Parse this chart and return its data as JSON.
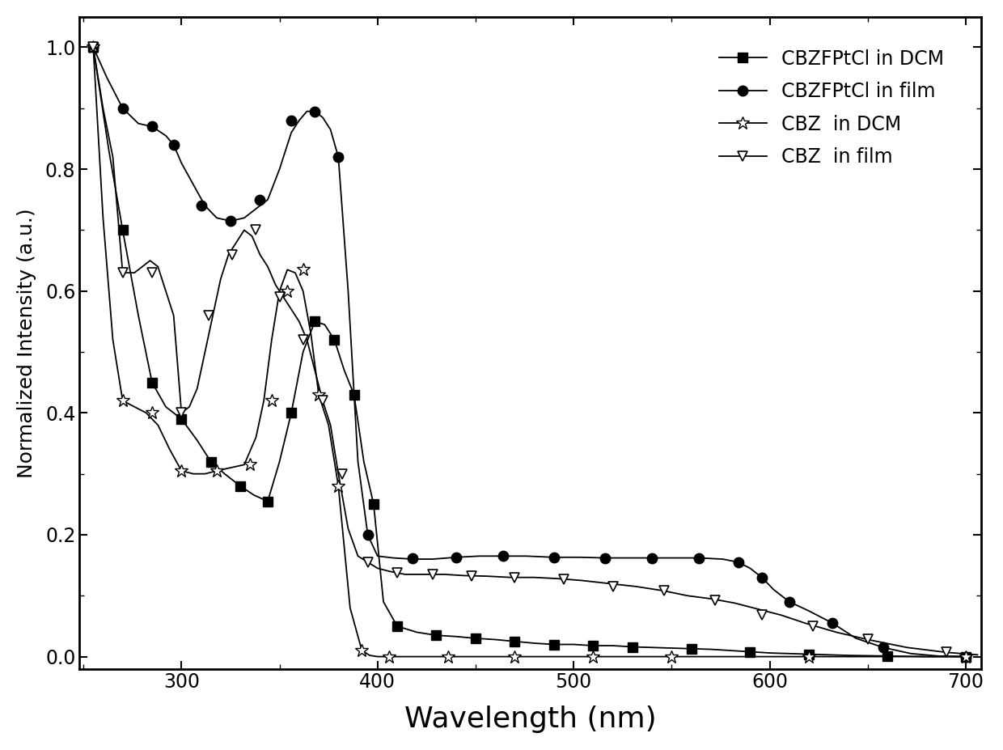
{
  "title": "",
  "xlabel": "Wavelength (nm)",
  "ylabel": "Normalized Intensity (a.u.)",
  "xlim": [
    248,
    708
  ],
  "ylim": [
    -0.02,
    1.05
  ],
  "xticks": [
    300,
    400,
    500,
    600,
    700
  ],
  "yticks": [
    0.0,
    0.2,
    0.4,
    0.6,
    0.8,
    1.0
  ],
  "series1_label": "CBZFPtCl in DCM",
  "series1_marker": "s",
  "series2_label": "CBZFPtCl in film",
  "series2_marker": "o",
  "series3_label": "CBZ  in DCM",
  "series3_marker": "*",
  "series4_label": "CBZ  in film",
  "series4_marker": "v",
  "series1_nodes_x": [
    255,
    263,
    270,
    278,
    285,
    292,
    300,
    308,
    315,
    322,
    330,
    337,
    344,
    350,
    356,
    362,
    368,
    373,
    378,
    383,
    388,
    393,
    398,
    403,
    410,
    420,
    430,
    440,
    450,
    460,
    470,
    480,
    490,
    500,
    510,
    520,
    530,
    540,
    550,
    560,
    570,
    580,
    590,
    600,
    620,
    640,
    660,
    680,
    700
  ],
  "series1_nodes_y": [
    1.0,
    0.83,
    0.7,
    0.56,
    0.45,
    0.41,
    0.39,
    0.355,
    0.32,
    0.3,
    0.28,
    0.265,
    0.255,
    0.32,
    0.4,
    0.5,
    0.55,
    0.545,
    0.52,
    0.47,
    0.43,
    0.32,
    0.25,
    0.09,
    0.05,
    0.04,
    0.035,
    0.033,
    0.03,
    0.028,
    0.025,
    0.022,
    0.02,
    0.02,
    0.018,
    0.018,
    0.016,
    0.015,
    0.014,
    0.013,
    0.012,
    0.01,
    0.008,
    0.006,
    0.004,
    0.002,
    0.001,
    0.0,
    0.0
  ],
  "series1_marker_x": [
    255,
    270,
    285,
    300,
    315,
    330,
    344,
    356,
    368,
    378,
    388,
    398,
    410,
    430,
    450,
    470,
    490,
    510,
    530,
    560,
    590,
    620,
    660,
    700
  ],
  "series1_marker_y": [
    1.0,
    0.7,
    0.45,
    0.39,
    0.32,
    0.28,
    0.255,
    0.4,
    0.55,
    0.52,
    0.43,
    0.25,
    0.05,
    0.035,
    0.03,
    0.025,
    0.02,
    0.018,
    0.015,
    0.013,
    0.008,
    0.004,
    0.001,
    0.0
  ],
  "series2_nodes_x": [
    255,
    262,
    270,
    278,
    285,
    292,
    296,
    300,
    306,
    312,
    318,
    325,
    332,
    338,
    344,
    350,
    356,
    360,
    364,
    368,
    372,
    376,
    380,
    385,
    390,
    395,
    400,
    408,
    418,
    428,
    440,
    452,
    464,
    476,
    490,
    504,
    516,
    528,
    540,
    552,
    564,
    576,
    584,
    590,
    596,
    602,
    610,
    620,
    632,
    644,
    658,
    672,
    686,
    700
  ],
  "series2_nodes_y": [
    1.0,
    0.95,
    0.9,
    0.875,
    0.87,
    0.855,
    0.84,
    0.81,
    0.775,
    0.74,
    0.72,
    0.715,
    0.72,
    0.735,
    0.75,
    0.8,
    0.86,
    0.88,
    0.895,
    0.895,
    0.885,
    0.865,
    0.82,
    0.6,
    0.32,
    0.2,
    0.165,
    0.162,
    0.16,
    0.16,
    0.163,
    0.165,
    0.165,
    0.165,
    0.163,
    0.163,
    0.162,
    0.162,
    0.162,
    0.162,
    0.162,
    0.16,
    0.155,
    0.145,
    0.13,
    0.11,
    0.09,
    0.075,
    0.055,
    0.03,
    0.015,
    0.005,
    0.001,
    0.0
  ],
  "series2_marker_x": [
    255,
    270,
    285,
    296,
    310,
    325,
    340,
    356,
    368,
    380,
    395,
    418,
    440,
    464,
    490,
    516,
    540,
    564,
    584,
    596,
    610,
    632,
    658,
    700
  ],
  "series2_marker_y": [
    1.0,
    0.9,
    0.87,
    0.84,
    0.74,
    0.715,
    0.75,
    0.88,
    0.895,
    0.82,
    0.2,
    0.162,
    0.163,
    0.165,
    0.163,
    0.162,
    0.162,
    0.162,
    0.155,
    0.13,
    0.09,
    0.055,
    0.015,
    0.0
  ],
  "series3_nodes_x": [
    255,
    260,
    265,
    270,
    276,
    282,
    288,
    294,
    300,
    306,
    312,
    318,
    325,
    332,
    338,
    342,
    346,
    350,
    354,
    358,
    362,
    366,
    370,
    375,
    380,
    386,
    392,
    396,
    400,
    406,
    414,
    424,
    436,
    450,
    470,
    490,
    510,
    530,
    550,
    580,
    620,
    660,
    700
  ],
  "series3_nodes_y": [
    1.0,
    0.72,
    0.52,
    0.42,
    0.41,
    0.4,
    0.38,
    0.34,
    0.305,
    0.3,
    0.3,
    0.305,
    0.31,
    0.315,
    0.36,
    0.42,
    0.52,
    0.6,
    0.635,
    0.63,
    0.6,
    0.53,
    0.43,
    0.38,
    0.28,
    0.08,
    0.01,
    0.002,
    0.0,
    0.0,
    0.0,
    0.0,
    0.0,
    0.0,
    0.0,
    0.0,
    0.0,
    0.0,
    0.0,
    0.0,
    0.0,
    0.0,
    0.0
  ],
  "series3_marker_x": [
    255,
    270,
    285,
    300,
    318,
    335,
    346,
    354,
    362,
    370,
    380,
    392,
    406,
    436,
    470,
    510,
    550,
    620,
    700
  ],
  "series3_marker_y": [
    1.0,
    0.42,
    0.4,
    0.305,
    0.305,
    0.315,
    0.42,
    0.6,
    0.635,
    0.43,
    0.28,
    0.01,
    0.0,
    0.0,
    0.0,
    0.0,
    0.0,
    0.0,
    0.0
  ],
  "series4_nodes_x": [
    255,
    260,
    265,
    270,
    276,
    280,
    284,
    288,
    292,
    296,
    300,
    304,
    308,
    312,
    316,
    320,
    324,
    328,
    332,
    336,
    340,
    344,
    348,
    352,
    356,
    360,
    364,
    368,
    372,
    376,
    380,
    385,
    390,
    395,
    400,
    406,
    414,
    424,
    434,
    444,
    456,
    468,
    480,
    492,
    504,
    518,
    532,
    546,
    558,
    570,
    582,
    594,
    606,
    618,
    634,
    650,
    670,
    690,
    706
  ],
  "series4_nodes_y": [
    1.0,
    0.9,
    0.82,
    0.63,
    0.63,
    0.64,
    0.65,
    0.64,
    0.6,
    0.56,
    0.4,
    0.41,
    0.44,
    0.5,
    0.56,
    0.62,
    0.66,
    0.68,
    0.7,
    0.69,
    0.66,
    0.64,
    0.61,
    0.59,
    0.57,
    0.55,
    0.52,
    0.47,
    0.42,
    0.38,
    0.3,
    0.21,
    0.165,
    0.155,
    0.145,
    0.14,
    0.135,
    0.135,
    0.135,
    0.133,
    0.132,
    0.13,
    0.13,
    0.128,
    0.125,
    0.12,
    0.115,
    0.108,
    0.1,
    0.095,
    0.088,
    0.078,
    0.068,
    0.055,
    0.04,
    0.028,
    0.015,
    0.007,
    0.003
  ],
  "series4_marker_x": [
    255,
    270,
    285,
    300,
    314,
    326,
    338,
    350,
    362,
    372,
    382,
    395,
    410,
    428,
    448,
    470,
    495,
    520,
    546,
    572,
    596,
    622,
    650,
    690
  ],
  "series4_marker_y": [
    1.0,
    0.63,
    0.63,
    0.4,
    0.56,
    0.66,
    0.7,
    0.59,
    0.52,
    0.42,
    0.3,
    0.155,
    0.138,
    0.135,
    0.132,
    0.13,
    0.127,
    0.115,
    0.108,
    0.092,
    0.068,
    0.05,
    0.028,
    0.007
  ],
  "background_color": "#ffffff",
  "linewidth": 1.3,
  "markersize_sq": 8,
  "markersize_circle": 9,
  "markersize_star": 12,
  "markersize_tri": 9,
  "xlabel_fontsize": 26,
  "ylabel_fontsize": 18,
  "tick_fontsize": 17,
  "legend_fontsize": 17
}
